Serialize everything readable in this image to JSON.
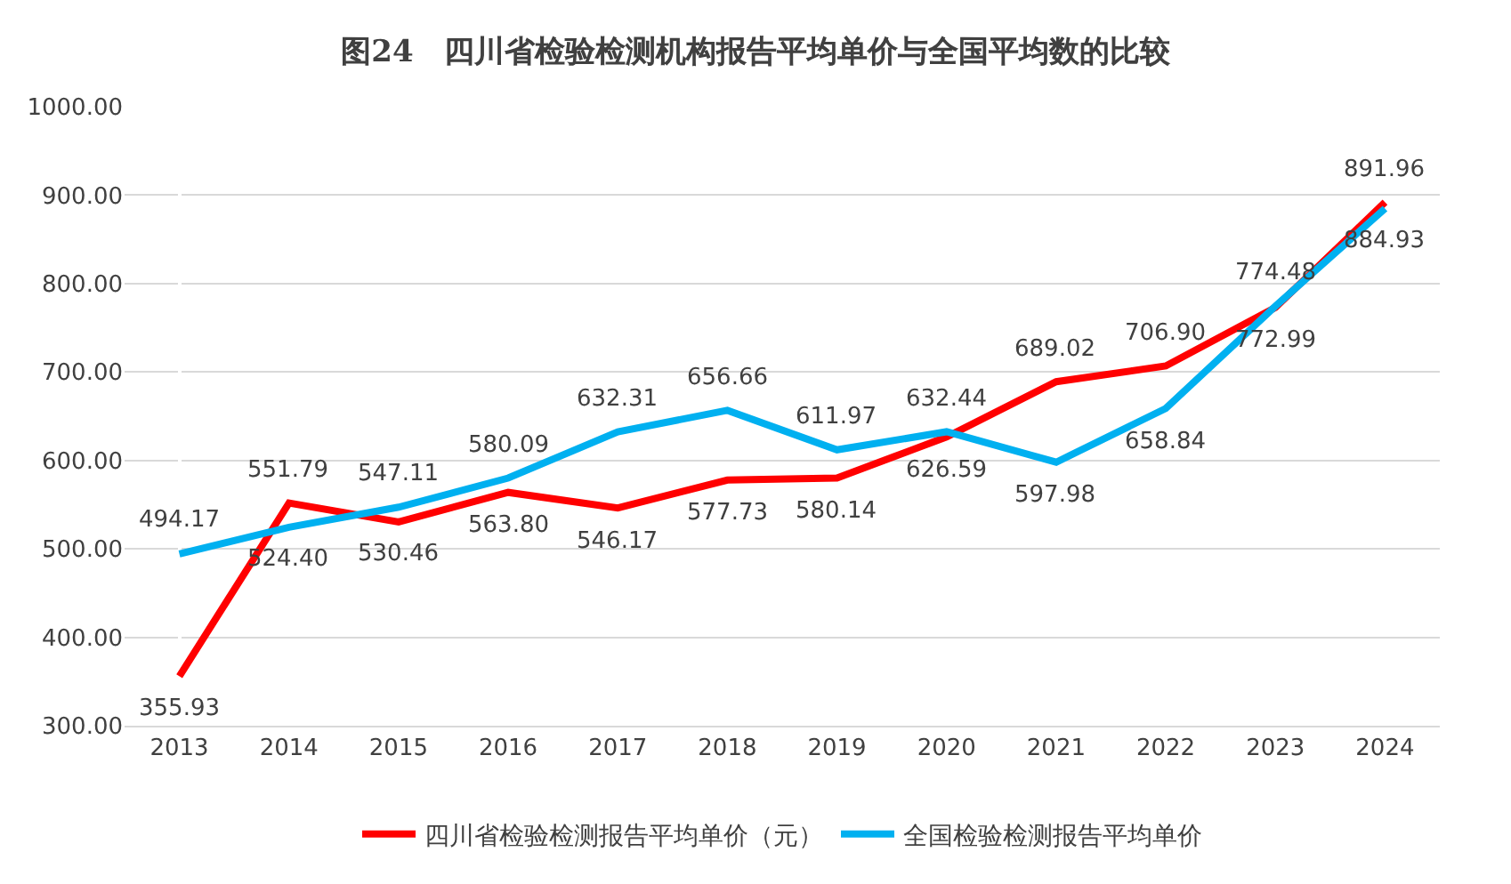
{
  "chart_data": {
    "type": "line",
    "title": "图24　四川省检验检测机构报告平均单价与全国平均数的比较",
    "categories": [
      "2013",
      "2014",
      "2015",
      "2016",
      "2017",
      "2018",
      "2019",
      "2020",
      "2021",
      "2022",
      "2023",
      "2024"
    ],
    "series": [
      {
        "name": "四川省检验检测报告平均单价（元）",
        "color": "#ff0000",
        "values": [
          355.93,
          551.79,
          530.46,
          563.8,
          546.17,
          577.73,
          580.14,
          626.59,
          689.02,
          706.9,
          772.99,
          891.96
        ],
        "value_labels": [
          "355.93",
          "551.79",
          "530.46",
          "563.80",
          "546.17",
          "577.73",
          "580.14",
          "626.59",
          "689.02",
          "706.90",
          "772.99",
          "891.96"
        ]
      },
      {
        "name": "全国检验检测报告平均单价",
        "color": "#00b0f0",
        "values": [
          494.17,
          524.4,
          547.11,
          580.09,
          632.31,
          656.66,
          611.97,
          632.44,
          597.98,
          658.84,
          774.48,
          884.93
        ],
        "value_labels": [
          "494.17",
          "524.40",
          "547.11",
          "580.09",
          "632.31",
          "656.66",
          "611.97",
          "632.44",
          "597.98",
          "658.84",
          "774.48",
          "884.93"
        ]
      }
    ],
    "ylim": [
      300,
      1000
    ],
    "yticks": [
      {
        "value": 300,
        "label": "300.00"
      },
      {
        "value": 400,
        "label": "400.00"
      },
      {
        "value": 500,
        "label": "500.00"
      },
      {
        "value": 600,
        "label": "600.00"
      },
      {
        "value": 700,
        "label": "700.00"
      },
      {
        "value": 800,
        "label": "800.00"
      },
      {
        "value": 900,
        "label": "900.00"
      },
      {
        "value": 1000,
        "label": "1000.00"
      }
    ],
    "grid": "y",
    "legend": "bottom",
    "marker": "none",
    "line_style": "solid"
  }
}
